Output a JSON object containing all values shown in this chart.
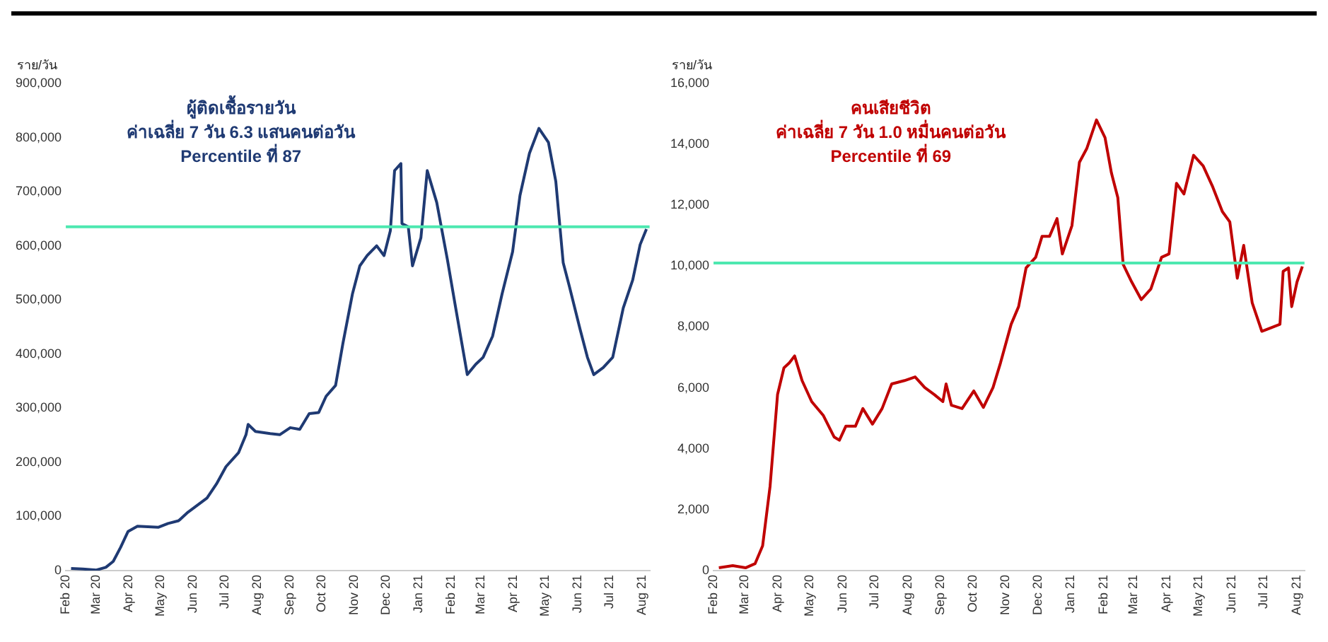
{
  "chart_data": [
    {
      "type": "line",
      "title": "ผู้ติดเชื้อรายวัน\nค่าเฉลี่ย 7 วัน 6.3 แสนคนต่อวัน\nPercentile ที่ 87",
      "ylabel": "ราย/วัน",
      "x": [
        "2020-02-06",
        "2020-02-17",
        "2020-03-01",
        "2020-03-10",
        "2020-03-17",
        "2020-03-24",
        "2020-03-31",
        "2020-04-09",
        "2020-04-29",
        "2020-05-08",
        "2020-05-18",
        "2020-05-27",
        "2020-06-05",
        "2020-06-14",
        "2020-06-23",
        "2020-07-02",
        "2020-07-14",
        "2020-07-21",
        "2020-07-23",
        "2020-07-30",
        "2020-08-13",
        "2020-08-22",
        "2020-09-01",
        "2020-09-10",
        "2020-09-19",
        "2020-09-28",
        "2020-10-05",
        "2020-10-14",
        "2020-10-21",
        "2020-10-30",
        "2020-11-06",
        "2020-11-13",
        "2020-11-22",
        "2020-11-29",
        "2020-12-05",
        "2020-12-09",
        "2020-12-15",
        "2020-12-16",
        "2020-12-22",
        "2020-12-26",
        "2021-01-03",
        "2021-01-09",
        "2021-01-18",
        "2021-01-28",
        "2021-02-05",
        "2021-02-16",
        "2021-02-24",
        "2021-03-03",
        "2021-03-12",
        "2021-03-21",
        "2021-03-31",
        "2021-04-07",
        "2021-04-16",
        "2021-04-25",
        "2021-05-04",
        "2021-05-11",
        "2021-05-18",
        "2021-05-24",
        "2021-06-03",
        "2021-06-10",
        "2021-06-16",
        "2021-06-25",
        "2021-07-04",
        "2021-07-14",
        "2021-07-23",
        "2021-07-30",
        "2021-08-05"
      ],
      "series": [
        {
          "color": "#1f3a73",
          "values": [
            4000,
            3000,
            1000,
            6000,
            17000,
            43000,
            72000,
            82000,
            80000,
            87000,
            92000,
            108000,
            121000,
            134000,
            160000,
            192000,
            218000,
            251000,
            270000,
            257000,
            253000,
            251000,
            264000,
            261000,
            290000,
            292000,
            322000,
            342000,
            420000,
            511000,
            563000,
            582000,
            600000,
            582000,
            628000,
            739000,
            752000,
            641000,
            635000,
            563000,
            615000,
            739000,
            680000,
            576000,
            485000,
            362000,
            381000,
            394000,
            433000,
            511000,
            589000,
            693000,
            771000,
            817000,
            791000,
            719000,
            569000,
            524000,
            446000,
            394000,
            362000,
            375000,
            394000,
            485000,
            537000,
            602000,
            631000
          ]
        }
      ],
      "xlim": [
        "2020-02-01",
        "2021-08-08"
      ],
      "xticks": [
        {
          "value": "2020-02-01",
          "label": "Feb 20"
        },
        {
          "value": "2020-03-01",
          "label": "Mar 20"
        },
        {
          "value": "2020-04-01",
          "label": "Apr 20"
        },
        {
          "value": "2020-05-01",
          "label": "May 20"
        },
        {
          "value": "2020-06-01",
          "label": "Jun 20"
        },
        {
          "value": "2020-07-01",
          "label": "Jul 20"
        },
        {
          "value": "2020-08-01",
          "label": "Aug 20"
        },
        {
          "value": "2020-09-01",
          "label": "Sep 20"
        },
        {
          "value": "2020-10-01",
          "label": "Oct 20"
        },
        {
          "value": "2020-11-01",
          "label": "Nov 20"
        },
        {
          "value": "2020-12-01",
          "label": "Dec 20"
        },
        {
          "value": "2021-01-01",
          "label": "Jan 21"
        },
        {
          "value": "2021-02-01",
          "label": "Feb 21"
        },
        {
          "value": "2021-03-01",
          "label": "Mar 21"
        },
        {
          "value": "2021-04-01",
          "label": "Apr 21"
        },
        {
          "value": "2021-05-01",
          "label": "May 21"
        },
        {
          "value": "2021-06-01",
          "label": "Jun 21"
        },
        {
          "value": "2021-07-01",
          "label": "Jul 21"
        },
        {
          "value": "2021-08-01",
          "label": "Aug 21"
        }
      ],
      "ylim": [
        0,
        900000
      ],
      "yticks": [
        {
          "value": 0,
          "label": "0"
        },
        {
          "value": 100000,
          "label": "100,000"
        },
        {
          "value": 200000,
          "label": "200,000"
        },
        {
          "value": 300000,
          "label": "300,000"
        },
        {
          "value": 400000,
          "label": "400,000"
        },
        {
          "value": 500000,
          "label": "500,000"
        },
        {
          "value": 600000,
          "label": "600,000"
        },
        {
          "value": 700000,
          "label": "700,000"
        },
        {
          "value": 800000,
          "label": "800,000"
        },
        {
          "value": 900000,
          "label": "900,000"
        }
      ],
      "ref_lines": [
        {
          "axis": "y",
          "value": 635000,
          "color": "#4de8b0"
        }
      ],
      "marker": "none",
      "line_style": "solid"
    },
    {
      "type": "line",
      "title": "คนเสียชีวิต\nค่าเฉลี่ย 7 วัน 1.0 หมื่นคนต่อวัน\nPercentile ที่ 69",
      "ylabel": "ราย/วัน",
      "x": [
        "2020-02-06",
        "2020-02-19",
        "2020-03-02",
        "2020-03-11",
        "2020-03-18",
        "2020-03-25",
        "2020-04-01",
        "2020-04-07",
        "2020-04-12",
        "2020-04-17",
        "2020-04-24",
        "2020-05-03",
        "2020-05-14",
        "2020-05-24",
        "2020-05-29",
        "2020-06-04",
        "2020-06-13",
        "2020-06-20",
        "2020-06-29",
        "2020-07-08",
        "2020-07-17",
        "2020-07-29",
        "2020-08-08",
        "2020-08-17",
        "2020-08-26",
        "2020-09-03",
        "2020-09-06",
        "2020-09-11",
        "2020-09-21",
        "2020-10-02",
        "2020-10-11",
        "2020-10-20",
        "2020-10-27",
        "2020-11-06",
        "2020-11-13",
        "2020-11-20",
        "2020-11-29",
        "2020-12-05",
        "2020-12-12",
        "2020-12-19",
        "2020-12-24",
        "2021-01-02",
        "2021-01-09",
        "2021-01-16",
        "2021-01-25",
        "2021-02-02",
        "2021-02-08",
        "2021-02-14",
        "2021-02-19",
        "2021-02-27",
        "2021-03-08",
        "2021-03-17",
        "2021-03-27",
        "2021-04-03",
        "2021-04-10",
        "2021-04-17",
        "2021-04-26",
        "2021-05-05",
        "2021-05-14",
        "2021-05-23",
        "2021-05-30",
        "2021-06-06",
        "2021-06-12",
        "2021-06-20",
        "2021-06-29",
        "2021-07-08",
        "2021-07-16",
        "2021-07-19",
        "2021-07-24",
        "2021-07-27",
        "2021-08-01",
        "2021-08-06"
      ],
      "series": [
        {
          "color": "#c00000",
          "values": [
            90,
            160,
            90,
            230,
            810,
            2770,
            5780,
            6660,
            6820,
            7050,
            6240,
            5550,
            5090,
            4390,
            4280,
            4740,
            4740,
            5320,
            4810,
            5320,
            6130,
            6240,
            6360,
            6010,
            5780,
            5550,
            6130,
            5430,
            5320,
            5900,
            5360,
            6010,
            6820,
            8090,
            8670,
            9940,
            10290,
            10980,
            10980,
            11560,
            10400,
            11330,
            13410,
            13870,
            14800,
            14220,
            13060,
            12250,
            10060,
            9480,
            8900,
            9250,
            10290,
            10400,
            12720,
            12370,
            13640,
            13290,
            12600,
            11790,
            11450,
            9600,
            10680,
            8790,
            7860,
            7980,
            8090,
            9830,
            9940,
            8670,
            9480,
            9990
          ]
        }
      ],
      "xlim": [
        "2020-02-01",
        "2021-08-08"
      ],
      "xticks": [
        {
          "value": "2020-02-01",
          "label": "Feb 20"
        },
        {
          "value": "2020-03-01",
          "label": "Mar 20"
        },
        {
          "value": "2020-04-01",
          "label": "Apr 20"
        },
        {
          "value": "2020-05-01",
          "label": "May 20"
        },
        {
          "value": "2020-06-01",
          "label": "Jun 20"
        },
        {
          "value": "2020-07-01",
          "label": "Jul 20"
        },
        {
          "value": "2020-08-01",
          "label": "Aug 20"
        },
        {
          "value": "2020-09-01",
          "label": "Sep 20"
        },
        {
          "value": "2020-10-01",
          "label": "Oct 20"
        },
        {
          "value": "2020-11-01",
          "label": "Nov 20"
        },
        {
          "value": "2020-12-01",
          "label": "Dec 20"
        },
        {
          "value": "2021-01-01",
          "label": "Jan 21"
        },
        {
          "value": "2021-02-01",
          "label": "Feb 21"
        },
        {
          "value": "2021-03-01",
          "label": "Mar 21"
        },
        {
          "value": "2021-04-01",
          "label": "Apr 21"
        },
        {
          "value": "2021-05-01",
          "label": "May 21"
        },
        {
          "value": "2021-06-01",
          "label": "Jun 21"
        },
        {
          "value": "2021-07-01",
          "label": "Jul 21"
        },
        {
          "value": "2021-08-01",
          "label": "Aug 21"
        }
      ],
      "ylim": [
        0,
        16000
      ],
      "yticks": [
        {
          "value": 0,
          "label": "0"
        },
        {
          "value": 2000,
          "label": "2,000"
        },
        {
          "value": 4000,
          "label": "4,000"
        },
        {
          "value": 6000,
          "label": "6,000"
        },
        {
          "value": 8000,
          "label": "8,000"
        },
        {
          "value": 10000,
          "label": "10,000"
        },
        {
          "value": 12000,
          "label": "12,000"
        },
        {
          "value": 14000,
          "label": "14,000"
        },
        {
          "value": 16000,
          "label": "16,000"
        }
      ],
      "ref_lines": [
        {
          "axis": "y",
          "value": 10100,
          "color": "#4de8b0"
        }
      ],
      "marker": "none",
      "line_style": "solid"
    }
  ]
}
